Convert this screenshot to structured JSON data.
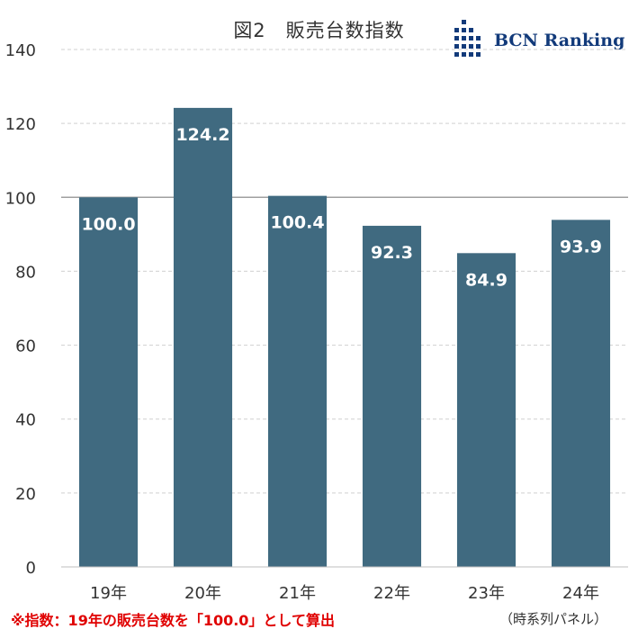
{
  "chart_data": {
    "type": "bar",
    "title": "図2　販売台数指数",
    "categories": [
      "19年",
      "20年",
      "21年",
      "22年",
      "23年",
      "24年"
    ],
    "values": [
      100.0,
      124.2,
      100.4,
      92.3,
      84.9,
      93.9
    ],
    "data_labels": [
      "100.0",
      "124.2",
      "100.4",
      "92.3",
      "84.9",
      "93.9"
    ],
    "ylim": [
      0,
      140
    ],
    "yticks": [
      0,
      20,
      40,
      60,
      80,
      100,
      120,
      140
    ],
    "reference_line": 100,
    "grid": true,
    "xlabel": "",
    "ylabel": "",
    "bar_color": "#406a80",
    "label_color": "#ffffff"
  },
  "logo_text": "BCN Ranking",
  "footnote": "※指数：19年の販売台数を「100.0」として算出",
  "panel_note": "（時系列パネル）",
  "colors": {
    "logo": "#123a7a",
    "footnote": "#e00000",
    "grid": "#d0d0d0",
    "reference_line": "#a0a0a0"
  }
}
